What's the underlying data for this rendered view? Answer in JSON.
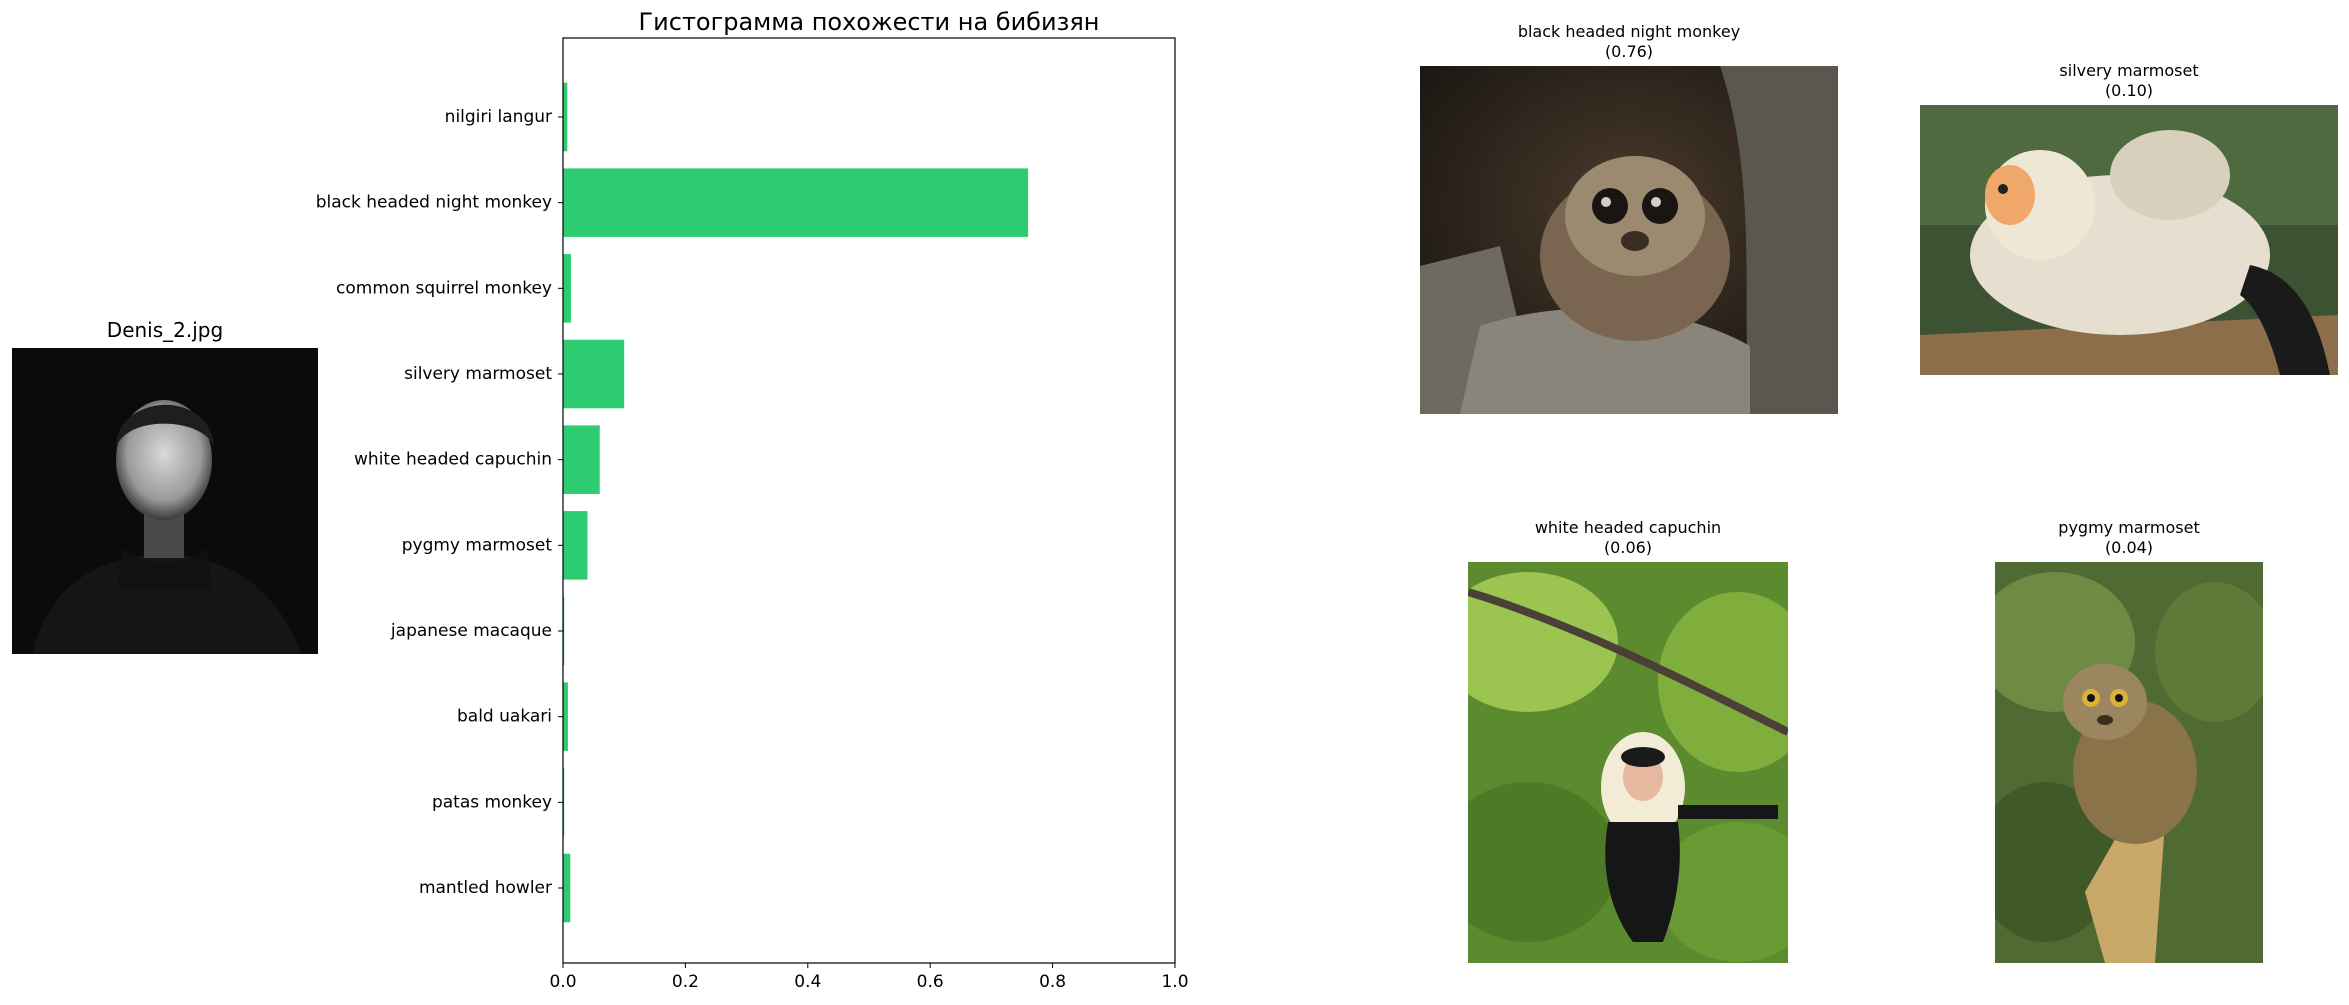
{
  "input_photo": {
    "filename": "Denis_2.jpg"
  },
  "chart_data": {
    "type": "bar",
    "orientation": "horizontal",
    "title": "Гистограмма похожести на бибизян",
    "xlabel": "",
    "ylabel": "",
    "xlim": [
      0,
      1.0
    ],
    "x_ticks": [
      "0.0",
      "0.2",
      "0.4",
      "0.6",
      "0.8",
      "1.0"
    ],
    "x_tick_values": [
      0,
      0.2,
      0.4,
      0.6,
      0.8,
      1.0
    ],
    "categories": [
      "nilgiri langur",
      "black headed night monkey",
      "common squirrel monkey",
      "silvery marmoset",
      "white headed capuchin",
      "pygmy marmoset",
      "japanese macaque",
      "bald uakari",
      "patas monkey",
      "mantled howler"
    ],
    "values": [
      0.007,
      0.76,
      0.013,
      0.1,
      0.06,
      0.04,
      0.002,
      0.008,
      0.002,
      0.012
    ],
    "bar_color": "#2ecc71",
    "grid": false,
    "legend": "none"
  },
  "top_matches": [
    {
      "name": "black headed night monkey",
      "score": "(0.76)"
    },
    {
      "name": "silvery marmoset",
      "score": "(0.10)"
    },
    {
      "name": "white headed capuchin",
      "score": "(0.06)"
    },
    {
      "name": "pygmy marmoset",
      "score": "(0.04)"
    }
  ]
}
